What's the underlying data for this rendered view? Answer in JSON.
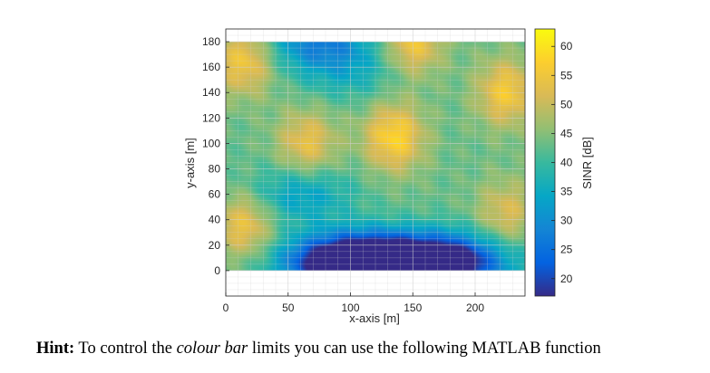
{
  "chart_data": {
    "type": "heatmap",
    "xlabel": "x-axis [m]",
    "ylabel": "y-axis [m]",
    "xlim": [
      0,
      240
    ],
    "ylim": [
      -20,
      190
    ],
    "data_extent": {
      "x": [
        0,
        240
      ],
      "y": [
        0,
        180
      ]
    },
    "x_ticks": [
      0,
      50,
      100,
      150,
      200
    ],
    "y_ticks": [
      0,
      20,
      40,
      60,
      80,
      100,
      120,
      140,
      160,
      180
    ],
    "grid": true,
    "colormap": "parula",
    "colorbar": {
      "label": "SINR [dB]",
      "range": [
        17,
        63
      ],
      "ticks": [
        20,
        25,
        30,
        35,
        40,
        45,
        50,
        55,
        60
      ]
    },
    "hotspots": [
      {
        "x": 15,
        "y": 165,
        "value": 56
      },
      {
        "x": 15,
        "y": 35,
        "value": 55
      },
      {
        "x": 65,
        "y": 100,
        "value": 54
      },
      {
        "x": 135,
        "y": 105,
        "value": 58
      },
      {
        "x": 150,
        "y": 180,
        "value": 56
      },
      {
        "x": 225,
        "y": 140,
        "value": 56
      },
      {
        "x": 225,
        "y": 45,
        "value": 52
      }
    ],
    "lowspots": [
      {
        "x": 75,
        "y": 180,
        "value": 28
      },
      {
        "x": 130,
        "y": 5,
        "value": 18
      },
      {
        "x": 90,
        "y": 5,
        "value": 19
      },
      {
        "x": 180,
        "y": 5,
        "value": 20
      },
      {
        "x": 60,
        "y": 60,
        "value": 33
      },
      {
        "x": 100,
        "y": 155,
        "value": 37
      }
    ],
    "baseline_value": 43
  },
  "caption": {
    "hint_label": "Hint:",
    "text_before": " To control the ",
    "emphasis": "colour bar",
    "text_after": " limits you can use the following MATLAB function"
  }
}
